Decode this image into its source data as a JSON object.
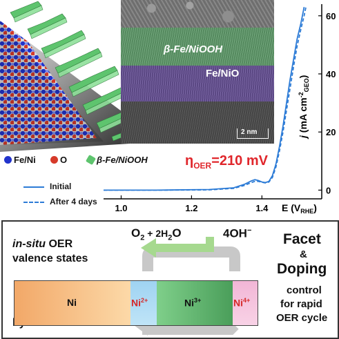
{
  "tem_image": {
    "layer_top": "β-Fe/NiOOH",
    "layer_bottom": "Fe/NiO",
    "scale_bar": "2 nm",
    "layer_colors": {
      "top": "#5f9a6a",
      "bottom": "#6a5499"
    }
  },
  "structure_legend": {
    "items": [
      {
        "label": "Fe/Ni",
        "color": "#2233cc"
      },
      {
        "label": "O",
        "color": "#d63a2a"
      },
      {
        "label": "β-Fe/NiOOH",
        "color": "#5ec46e"
      }
    ]
  },
  "overpotential": {
    "symbol": "η",
    "subscript": "OER",
    "value": "=210 mV"
  },
  "chart_data": {
    "type": "line",
    "x_axis": {
      "label": "E (V",
      "label_sub": "RHE",
      "label_end": ")",
      "ticks": [
        "1.0",
        "1.2",
        "1.4"
      ],
      "range": [
        0.95,
        1.57
      ]
    },
    "y_axis": {
      "label": "j (mA cm",
      "label_sup": "-2",
      "label_sub": "GEO",
      "label_end": ")",
      "ticks": [
        "0",
        "20",
        "40",
        "60"
      ],
      "range": [
        -3,
        64
      ],
      "position": "right"
    },
    "series": [
      {
        "name": "Initial",
        "style": "solid",
        "color": "#2c7bd6",
        "x": [
          0.95,
          1.1,
          1.25,
          1.32,
          1.35,
          1.37,
          1.38,
          1.39,
          1.4,
          1.41,
          1.42,
          1.43,
          1.44,
          1.45,
          1.46,
          1.47,
          1.48,
          1.49,
          1.5,
          1.51,
          1.515,
          1.52
        ],
        "y": [
          0.0,
          0.0,
          0.2,
          0.8,
          2.0,
          3.2,
          3.6,
          3.3,
          2.8,
          2.6,
          3.0,
          5.0,
          9.0,
          15.0,
          22.0,
          30.0,
          38.0,
          45.0,
          52.0,
          57.0,
          60.0,
          63.0
        ]
      },
      {
        "name": "After 4 days",
        "style": "dashed",
        "color": "#2c7bd6",
        "x": [
          0.95,
          1.1,
          1.25,
          1.32,
          1.35,
          1.37,
          1.38,
          1.39,
          1.4,
          1.41,
          1.42,
          1.43,
          1.44,
          1.45,
          1.46,
          1.47,
          1.48,
          1.49,
          1.5,
          1.51,
          1.52,
          1.525
        ],
        "y": [
          0.0,
          0.0,
          0.1,
          0.6,
          1.6,
          2.6,
          3.0,
          3.0,
          2.7,
          2.5,
          2.8,
          4.4,
          8.0,
          13.5,
          20.0,
          27.5,
          35.0,
          42.5,
          49.5,
          55.0,
          60.0,
          63.0
        ]
      }
    ]
  },
  "bottom_panel": {
    "title_line1_italic": "in-situ",
    "title_line1_rest": " OER",
    "title_line2": "valence states",
    "method": "by XANES",
    "products": {
      "o2": "O",
      "o2_sub": "2",
      "plus": " + 2H",
      "h2o_sub": "2",
      "o": "O"
    },
    "reactant": {
      "text": "4OH",
      "sup": "−"
    },
    "valence_bar": [
      "Ni",
      "Ni",
      "Ni",
      "Ni"
    ],
    "valence_sups": [
      "",
      "2+",
      "3+",
      "4+"
    ],
    "side_text": {
      "line1": "Facet",
      "amp": "&",
      "line2": "Doping",
      "line3": "control",
      "line4": "for rapid",
      "line5": "OER cycle"
    }
  }
}
